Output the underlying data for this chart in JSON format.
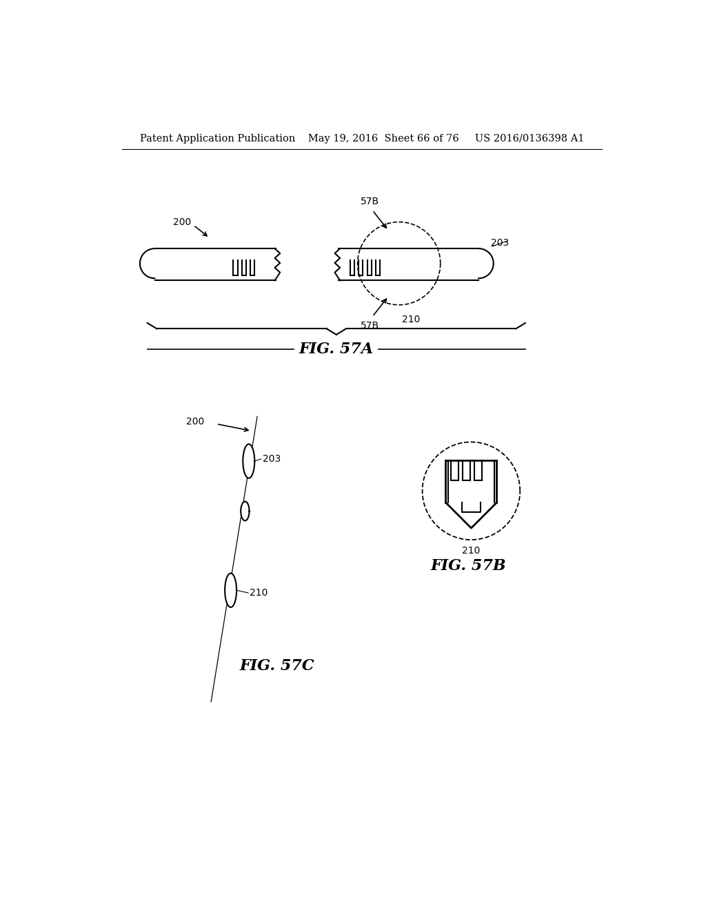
{
  "background_color": "#ffffff",
  "header_text": "Patent Application Publication    May 19, 2016  Sheet 66 of 76     US 2016/0136398 A1",
  "header_fontsize": 10.5,
  "fig57a_label": "FIG. 57A",
  "fig57b_label": "FIG. 57B",
  "fig57c_label": "FIG. 57C",
  "label_fontsize": 16,
  "annotation_fontsize": 10
}
